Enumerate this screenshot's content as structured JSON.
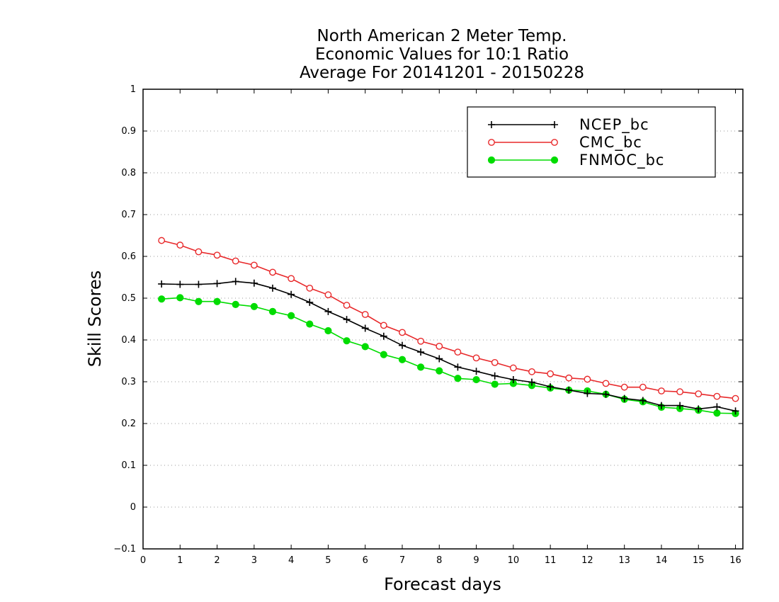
{
  "chart_data": {
    "type": "line",
    "title_lines": [
      "North American 2 Meter Temp.",
      "Economic Values for 10:1 Ratio",
      "Average For 20141201 - 20150228"
    ],
    "xlabel": "Forecast days",
    "ylabel": "Skill Scores",
    "xlim": [
      0,
      16.2
    ],
    "ylim": [
      -0.1,
      1
    ],
    "x_ticks": [
      0,
      1,
      2,
      3,
      4,
      5,
      6,
      7,
      8,
      9,
      10,
      11,
      12,
      13,
      14,
      15,
      16
    ],
    "x_tick_labels": [
      "0",
      "1",
      "2",
      "3",
      "4",
      "5",
      "6",
      "7",
      "8",
      "9",
      "10",
      "11",
      "12",
      "13",
      "14",
      "15",
      "16"
    ],
    "y_ticks": [
      -0.1,
      0,
      0.1,
      0.2,
      0.3,
      0.4,
      0.5,
      0.6,
      0.7,
      0.8,
      0.9,
      1
    ],
    "y_tick_labels": [
      "−0.1",
      "0",
      "0.1",
      "0.2",
      "0.3",
      "0.4",
      "0.5",
      "0.6",
      "0.7",
      "0.8",
      "0.9",
      "1"
    ],
    "grid": "horizontal dotted",
    "legend_position": "top-right",
    "x": [
      0.5,
      1,
      1.5,
      2,
      2.5,
      3,
      3.5,
      4,
      4.5,
      5,
      5.5,
      6,
      6.5,
      7,
      7.5,
      8,
      8.5,
      9,
      9.5,
      10,
      10.5,
      11,
      11.5,
      12,
      12.5,
      13,
      13.5,
      14,
      14.5,
      15,
      15.5,
      16
    ],
    "series": [
      {
        "name": "NCEP_bc",
        "color": "#000000",
        "marker": "plus",
        "values": [
          0.534,
          0.533,
          0.533,
          0.535,
          0.54,
          0.536,
          0.524,
          0.509,
          0.49,
          0.468,
          0.449,
          0.428,
          0.409,
          0.387,
          0.371,
          0.355,
          0.335,
          0.325,
          0.314,
          0.305,
          0.299,
          0.288,
          0.28,
          0.272,
          0.27,
          0.26,
          0.255,
          0.243,
          0.243,
          0.235,
          0.24,
          0.23
        ]
      },
      {
        "name": "CMC_bc",
        "color": "#e8282a",
        "marker": "open-circle",
        "values": [
          0.638,
          0.627,
          0.611,
          0.603,
          0.589,
          0.579,
          0.562,
          0.547,
          0.524,
          0.508,
          0.483,
          0.461,
          0.435,
          0.418,
          0.397,
          0.385,
          0.371,
          0.357,
          0.346,
          0.333,
          0.324,
          0.319,
          0.309,
          0.306,
          0.296,
          0.287,
          0.287,
          0.278,
          0.276,
          0.271,
          0.265,
          0.26
        ]
      },
      {
        "name": "FNMOC_bc",
        "color": "#00dc00",
        "marker": "filled-circle",
        "values": [
          0.498,
          0.501,
          0.492,
          0.492,
          0.485,
          0.48,
          0.468,
          0.458,
          0.438,
          0.422,
          0.398,
          0.384,
          0.365,
          0.353,
          0.335,
          0.326,
          0.308,
          0.305,
          0.294,
          0.296,
          0.291,
          0.285,
          0.28,
          0.278,
          0.27,
          0.258,
          0.252,
          0.239,
          0.236,
          0.232,
          0.225,
          0.224
        ]
      }
    ]
  }
}
